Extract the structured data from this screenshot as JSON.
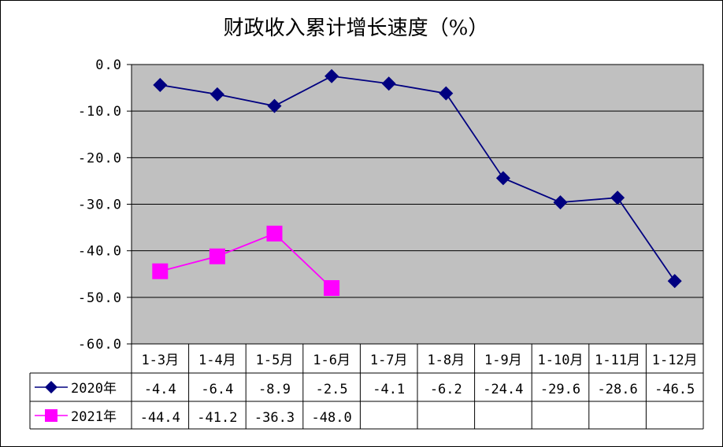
{
  "chart_data": {
    "type": "line",
    "title": "财政收入累计增长速度（%）",
    "categories": [
      "1-3月",
      "1-4月",
      "1-5月",
      "1-6月",
      "1-7月",
      "1-8月",
      "1-9月",
      "1-10月",
      "1-11月",
      "1-12月"
    ],
    "series": [
      {
        "name": "2020年",
        "color": "#000080",
        "marker": "diamond",
        "values": [
          -4.4,
          -6.4,
          -8.9,
          -2.5,
          -4.1,
          -6.2,
          -24.4,
          -29.6,
          -28.6,
          -46.5
        ]
      },
      {
        "name": "2021年",
        "color": "#FF00FF",
        "marker": "square",
        "values": [
          -44.4,
          -41.2,
          -36.3,
          -48.0,
          null,
          null,
          null,
          null,
          null,
          null
        ]
      }
    ],
    "ylim": [
      -60,
      0
    ],
    "yticks": [
      0,
      -10,
      -20,
      -30,
      -40,
      -50,
      -60
    ],
    "grid": true,
    "plot_background": "#C0C0C0",
    "legend": "data-table-left",
    "xlabel": "",
    "ylabel": ""
  }
}
